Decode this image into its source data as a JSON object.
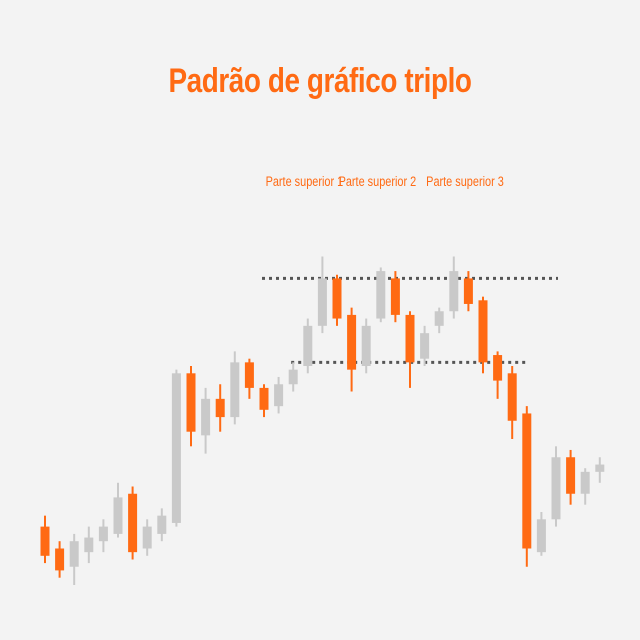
{
  "colors": {
    "background": "#f3f3f3",
    "bearish": "#ff6a13",
    "bullish": "#c9c9c9",
    "title": "#ff6a13",
    "annotation": "#ff6a13",
    "level_line": "#555555"
  },
  "chart_data": {
    "type": "candlestick",
    "title": "Padrão de gráfico triplo",
    "xlabel": "",
    "ylabel": "",
    "axes_visible": false,
    "grid": false,
    "ylim": [
      0,
      100
    ],
    "annotations": [
      {
        "text": "Parte superior 1",
        "candle_index": 19
      },
      {
        "text": "Parte superior 2",
        "candle_index": 24
      },
      {
        "text": "Parte superior 3",
        "candle_index": 30
      }
    ],
    "levels": [
      {
        "name": "resistance",
        "value": 84,
        "from_candle": 15,
        "to_candle": 35
      },
      {
        "name": "support",
        "value": 61,
        "from_candle": 17,
        "to_candle": 33
      }
    ],
    "candles": [
      {
        "i": 0,
        "open": 16,
        "close": 8,
        "high": 19,
        "low": 6
      },
      {
        "i": 1,
        "open": 10,
        "close": 4,
        "high": 12,
        "low": 2
      },
      {
        "i": 2,
        "open": 5,
        "close": 12,
        "high": 14,
        "low": 0
      },
      {
        "i": 3,
        "open": 9,
        "close": 13,
        "high": 16,
        "low": 6
      },
      {
        "i": 4,
        "open": 12,
        "close": 16,
        "high": 18,
        "low": 9
      },
      {
        "i": 5,
        "open": 14,
        "close": 24,
        "high": 28,
        "low": 13
      },
      {
        "i": 6,
        "open": 25,
        "close": 9,
        "high": 27,
        "low": 7
      },
      {
        "i": 7,
        "open": 10,
        "close": 16,
        "high": 18,
        "low": 8
      },
      {
        "i": 8,
        "open": 14,
        "close": 19,
        "high": 21,
        "low": 12
      },
      {
        "i": 9,
        "open": 17,
        "close": 58,
        "high": 59,
        "low": 16
      },
      {
        "i": 10,
        "open": 58,
        "close": 42,
        "high": 60,
        "low": 38
      },
      {
        "i": 11,
        "open": 41,
        "close": 51,
        "high": 54,
        "low": 36
      },
      {
        "i": 12,
        "open": 51,
        "close": 46,
        "high": 55,
        "low": 42
      },
      {
        "i": 13,
        "open": 46,
        "close": 61,
        "high": 64,
        "low": 44
      },
      {
        "i": 14,
        "open": 61,
        "close": 54,
        "high": 62,
        "low": 51
      },
      {
        "i": 15,
        "open": 54,
        "close": 48,
        "high": 55,
        "low": 46
      },
      {
        "i": 16,
        "open": 49,
        "close": 55,
        "high": 57,
        "low": 47
      },
      {
        "i": 17,
        "open": 55,
        "close": 59,
        "high": 61,
        "low": 53
      },
      {
        "i": 18,
        "open": 60,
        "close": 71,
        "high": 73,
        "low": 58
      },
      {
        "i": 19,
        "open": 71,
        "close": 84,
        "high": 90,
        "low": 69
      },
      {
        "i": 20,
        "open": 84,
        "close": 73,
        "high": 85,
        "low": 71
      },
      {
        "i": 21,
        "open": 74,
        "close": 59,
        "high": 76,
        "low": 53
      },
      {
        "i": 22,
        "open": 60,
        "close": 71,
        "high": 73,
        "low": 58
      },
      {
        "i": 23,
        "open": 73,
        "close": 86,
        "high": 87,
        "low": 72
      },
      {
        "i": 24,
        "open": 84,
        "close": 74,
        "high": 86,
        "low": 72
      },
      {
        "i": 25,
        "open": 74,
        "close": 61,
        "high": 75,
        "low": 54
      },
      {
        "i": 26,
        "open": 62,
        "close": 69,
        "high": 71,
        "low": 60
      },
      {
        "i": 27,
        "open": 71,
        "close": 75,
        "high": 76,
        "low": 69
      },
      {
        "i": 28,
        "open": 75,
        "close": 86,
        "high": 90,
        "low": 73
      },
      {
        "i": 29,
        "open": 84,
        "close": 77,
        "high": 86,
        "low": 75
      },
      {
        "i": 30,
        "open": 78,
        "close": 61,
        "high": 79,
        "low": 58
      },
      {
        "i": 31,
        "open": 63,
        "close": 56,
        "high": 64,
        "low": 51
      },
      {
        "i": 32,
        "open": 58,
        "close": 45,
        "high": 60,
        "low": 40
      },
      {
        "i": 33,
        "open": 47,
        "close": 10,
        "high": 49,
        "low": 5
      },
      {
        "i": 34,
        "open": 9,
        "close": 18,
        "high": 20,
        "low": 8
      },
      {
        "i": 35,
        "open": 18,
        "close": 35,
        "high": 38,
        "low": 16
      },
      {
        "i": 36,
        "open": 35,
        "close": 25,
        "high": 37,
        "low": 22
      },
      {
        "i": 37,
        "open": 25,
        "close": 31,
        "high": 32,
        "low": 22
      },
      {
        "i": 38,
        "open": 31,
        "close": 33,
        "high": 35,
        "low": 28
      }
    ]
  }
}
